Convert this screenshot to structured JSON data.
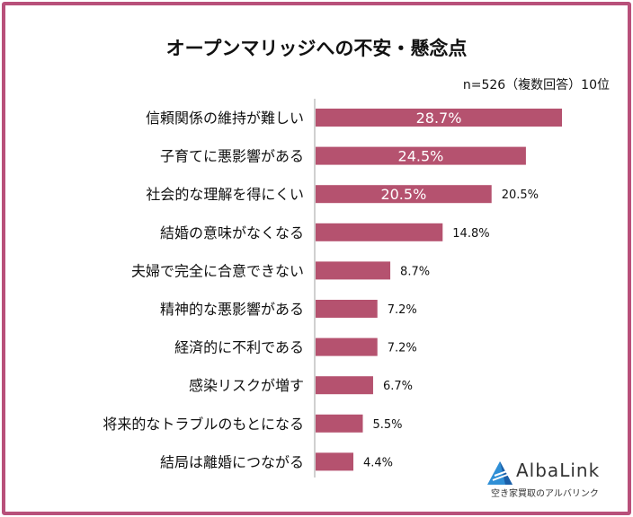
{
  "chart_data": {
    "type": "bar",
    "orientation": "horizontal",
    "title": "オープンマリッジへの不安・懸念点",
    "note": "n=526（複数回答）10位",
    "categories": [
      "信頼関係の維持が難しい",
      "子育てに悪影響がある",
      "社会的な理解を得にくい",
      "結婚の意味がなくなる",
      "夫婦で完全に合意できない",
      "精神的な悪影響がある",
      "経済的に不利である",
      "感染リスクが増す",
      "将来的なトラブルのもとになる",
      "結局は離婚につながる"
    ],
    "values": [
      28.7,
      24.5,
      20.5,
      14.8,
      8.7,
      7.2,
      7.2,
      6.7,
      5.5,
      4.4
    ],
    "value_labels": [
      "28.7%",
      "24.5%",
      "20.5%",
      "14.8%",
      "8.7%",
      "7.2%",
      "7.2%",
      "6.7%",
      "5.5%",
      "4.4%"
    ],
    "inside_labels": [
      true,
      true,
      true,
      false,
      false,
      false,
      false,
      false,
      false,
      false
    ],
    "outside_labels": [
      false,
      false,
      true,
      true,
      true,
      true,
      true,
      true,
      true,
      true
    ],
    "bar_color": "#b5526f",
    "grid": false,
    "legend": "none"
  },
  "logo": {
    "name": "AlbaLink",
    "subtitle": "空き家買取のアルバリンク"
  },
  "colors": {
    "frame": "#b8507a"
  }
}
